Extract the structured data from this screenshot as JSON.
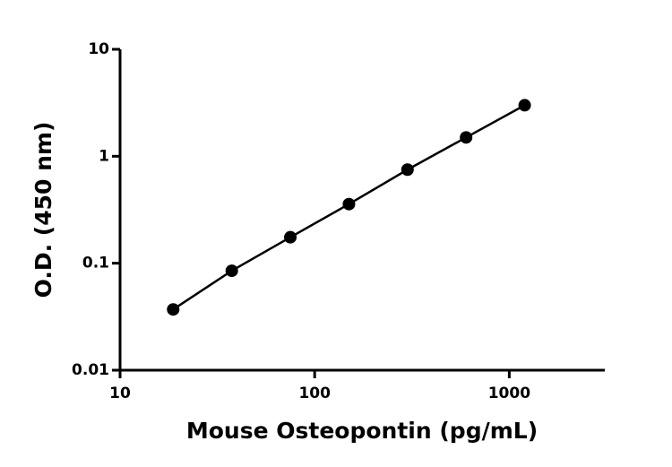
{
  "chart_data": {
    "type": "line",
    "x_label": "Mouse Osteopontin (pg/mL)",
    "y_label": "O.D. (450 nm)",
    "x": [
      18.75,
      37.5,
      75,
      150,
      300,
      600,
      1200
    ],
    "series": [
      {
        "color": "#000000",
        "values": [
          0.037,
          0.085,
          0.175,
          0.357,
          0.75,
          1.5,
          3.0
        ]
      }
    ],
    "xlim": [
      10,
      3000
    ],
    "ylim": [
      0.01,
      10
    ],
    "xticks": [
      10,
      100,
      1000
    ],
    "yticks": [
      0.01,
      0.1,
      1,
      10
    ],
    "xscale": "log",
    "yscale": "log",
    "grid": false,
    "markers": true
  }
}
